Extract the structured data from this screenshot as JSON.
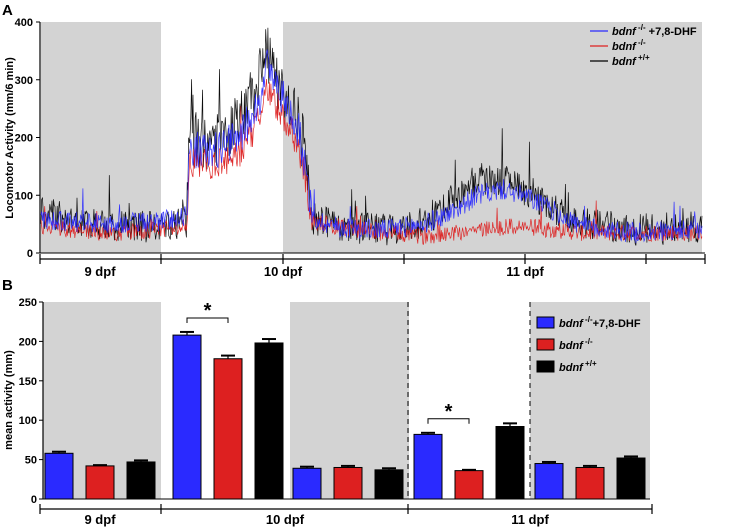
{
  "panel_a_letter": "A",
  "panel_b_letter": "B",
  "colors": {
    "dhf": "#2a2aff",
    "ko": "#dd2020",
    "wt": "#000000",
    "night_shade": "#d3d3d3"
  },
  "chart_data": [
    {
      "type": "line",
      "panel": "A",
      "ylabel": "Locomotor Activity (mm/6 min)",
      "ylim": [
        0,
        400
      ],
      "yticks": [
        0,
        100,
        200,
        300,
        400
      ],
      "x_groups": [
        "9 dpf",
        "10 dpf",
        "11 dpf"
      ],
      "series": [
        {
          "name": "bdnf -/- +7,8-DHF",
          "color": "#2a2aff",
          "profile": [
            [
              0,
              60
            ],
            [
              0.04,
              55
            ],
            [
              0.1,
              50
            ],
            [
              0.18,
              55
            ],
            [
              0.22,
              65
            ],
            [
              0.225,
              180
            ],
            [
              0.26,
              175
            ],
            [
              0.3,
              200
            ],
            [
              0.33,
              260
            ],
            [
              0.34,
              330
            ],
            [
              0.36,
              280
            ],
            [
              0.38,
              240
            ],
            [
              0.39,
              210
            ],
            [
              0.4,
              150
            ],
            [
              0.41,
              60
            ],
            [
              0.45,
              45
            ],
            [
              0.52,
              40
            ],
            [
              0.58,
              50
            ],
            [
              0.62,
              70
            ],
            [
              0.66,
              100
            ],
            [
              0.7,
              110
            ],
            [
              0.74,
              95
            ],
            [
              0.78,
              70
            ],
            [
              0.82,
              45
            ],
            [
              0.9,
              35
            ],
            [
              1.0,
              40
            ]
          ],
          "noise": 18
        },
        {
          "name": "bdnf -/-",
          "color": "#dd2020",
          "profile": [
            [
              0,
              45
            ],
            [
              0.04,
              40
            ],
            [
              0.1,
              35
            ],
            [
              0.18,
              40
            ],
            [
              0.22,
              45
            ],
            [
              0.225,
              160
            ],
            [
              0.26,
              150
            ],
            [
              0.3,
              170
            ],
            [
              0.33,
              230
            ],
            [
              0.34,
              290
            ],
            [
              0.36,
              250
            ],
            [
              0.38,
              210
            ],
            [
              0.39,
              180
            ],
            [
              0.4,
              130
            ],
            [
              0.41,
              55
            ],
            [
              0.45,
              45
            ],
            [
              0.52,
              35
            ],
            [
              0.58,
              30
            ],
            [
              0.62,
              35
            ],
            [
              0.66,
              40
            ],
            [
              0.7,
              45
            ],
            [
              0.74,
              45
            ],
            [
              0.78,
              40
            ],
            [
              0.82,
              35
            ],
            [
              0.9,
              35
            ],
            [
              1.0,
              35
            ]
          ],
          "noise": 15
        },
        {
          "name": "bdnf +/+",
          "color": "#000000",
          "profile": [
            [
              0,
              70
            ],
            [
              0.04,
              60
            ],
            [
              0.1,
              50
            ],
            [
              0.18,
              45
            ],
            [
              0.22,
              55
            ],
            [
              0.225,
              200
            ],
            [
              0.26,
              190
            ],
            [
              0.3,
              230
            ],
            [
              0.33,
              300
            ],
            [
              0.34,
              340
            ],
            [
              0.36,
              290
            ],
            [
              0.38,
              250
            ],
            [
              0.39,
              220
            ],
            [
              0.4,
              170
            ],
            [
              0.41,
              60
            ],
            [
              0.45,
              45
            ],
            [
              0.52,
              40
            ],
            [
              0.58,
              55
            ],
            [
              0.62,
              90
            ],
            [
              0.66,
              130
            ],
            [
              0.7,
              125
            ],
            [
              0.74,
              105
            ],
            [
              0.78,
              75
            ],
            [
              0.82,
              50
            ],
            [
              0.9,
              40
            ],
            [
              1.0,
              45
            ]
          ],
          "noise": 28
        }
      ],
      "legend": [
        {
          "label_main": "bdnf",
          "label_sup": "-/-",
          "label_suffix": " +7,8-DHF",
          "color": "#2a2aff"
        },
        {
          "label_main": "bdnf",
          "label_sup": "-/-",
          "label_suffix": "",
          "color": "#dd2020"
        },
        {
          "label_main": "bdnf",
          "label_sup": "+/+",
          "label_suffix": "",
          "color": "#000000"
        }
      ]
    },
    {
      "type": "bar",
      "panel": "B",
      "ylabel": "mean activity (mm)",
      "ylim": [
        0,
        250
      ],
      "yticks": [
        0,
        50,
        100,
        150,
        200,
        250
      ],
      "x_groups": [
        "9 dpf",
        "10 dpf",
        "11 dpf"
      ],
      "categories": [
        "9 dpf night",
        "10 dpf day",
        "10 dpf night",
        "11 dpf day",
        "11 dpf night"
      ],
      "series": [
        {
          "name": "bdnf -/- +7,8-DHF",
          "color": "#2a2aff",
          "values": [
            58,
            208,
            39,
            82,
            45
          ],
          "errors": [
            2,
            4,
            2,
            2,
            2
          ]
        },
        {
          "name": "bdnf -/-",
          "color": "#dd2020",
          "values": [
            42,
            178,
            40,
            36,
            40
          ],
          "errors": [
            1,
            4,
            2,
            1,
            2
          ]
        },
        {
          "name": "bdnf +/+",
          "color": "#000000",
          "values": [
            47,
            198,
            37,
            92,
            52
          ],
          "errors": [
            2,
            5,
            2,
            4,
            2
          ]
        }
      ],
      "significance": [
        {
          "category": 1,
          "between": [
            0,
            1
          ],
          "label": "*"
        },
        {
          "category": 3,
          "between": [
            0,
            1
          ],
          "label": "*"
        }
      ],
      "legend": [
        {
          "label_main": "bdnf",
          "label_sup": "-/-",
          "label_suffix": "+7,8-DHF",
          "color": "#2a2aff"
        },
        {
          "label_main": "bdnf",
          "label_sup": "-/-",
          "label_suffix": "",
          "color": "#dd2020"
        },
        {
          "label_main": "bdnf",
          "label_sup": "+/+",
          "label_suffix": "",
          "color": "#000000"
        }
      ]
    }
  ]
}
